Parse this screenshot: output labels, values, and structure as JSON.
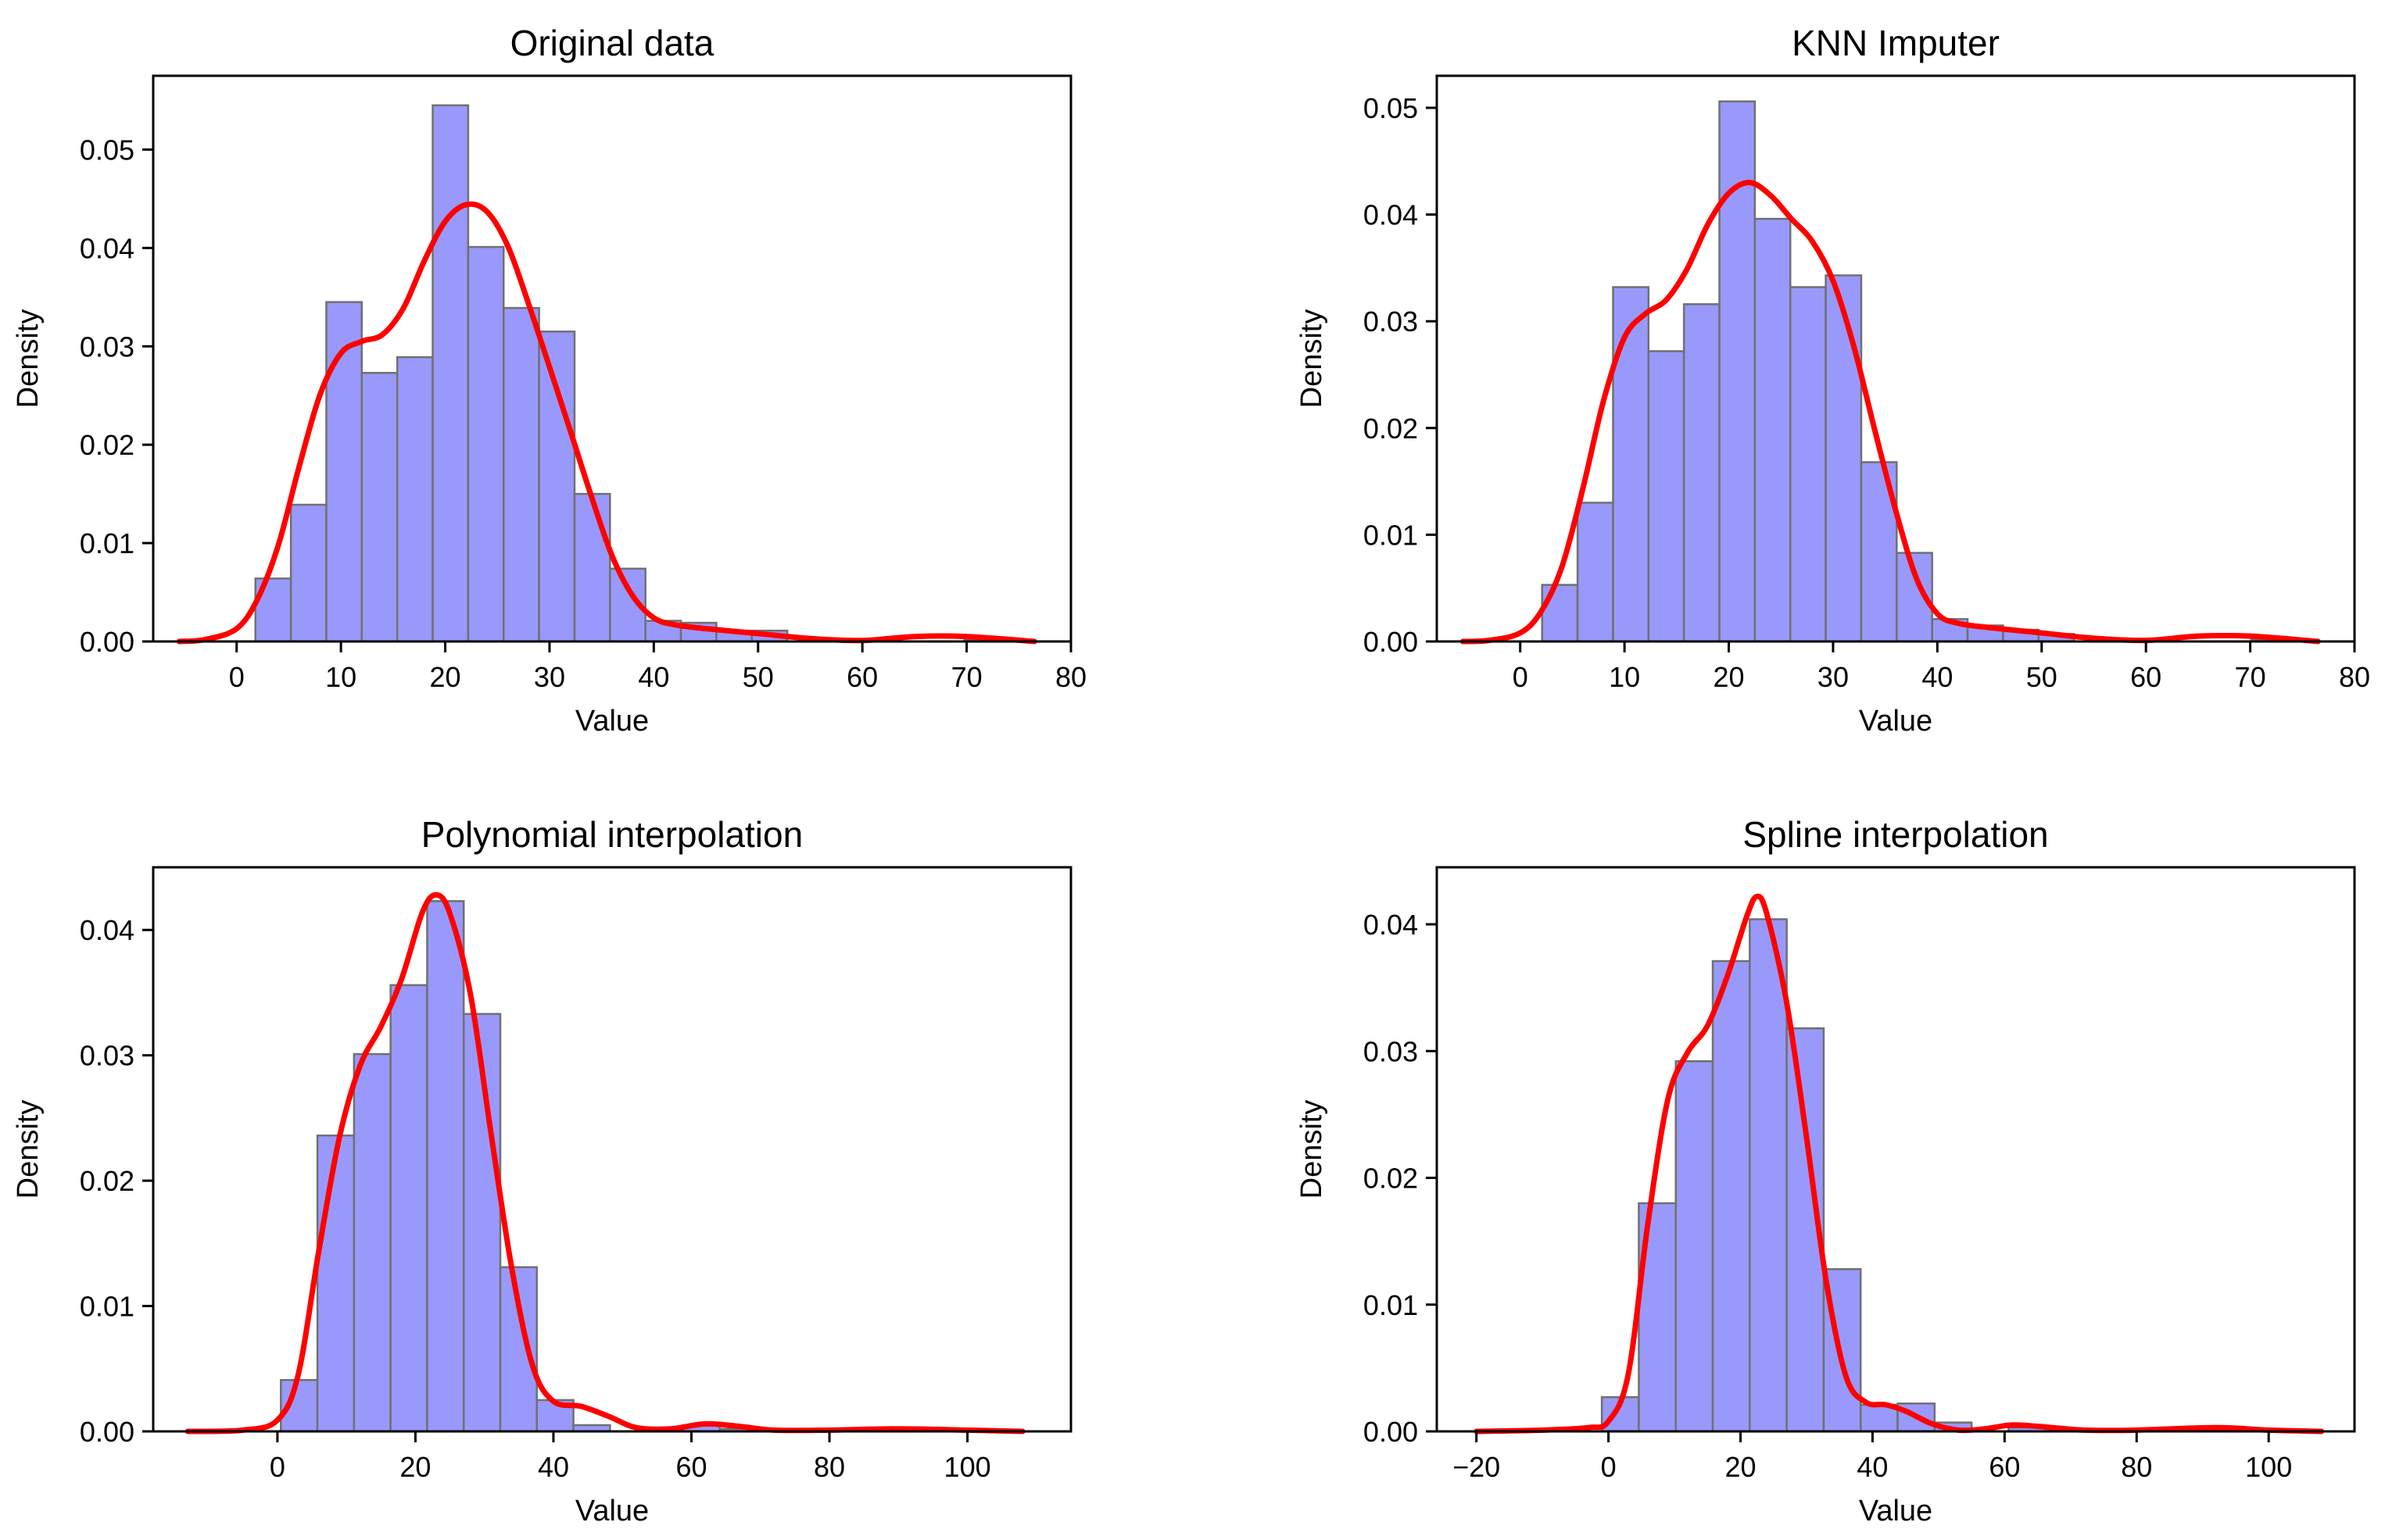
{
  "chart_data": [
    {
      "type": "bar",
      "title": "Original data",
      "xlabel": "Value",
      "ylabel": "Density",
      "xlim": [
        -8,
        80
      ],
      "ylim": [
        0,
        0.0575
      ],
      "xticks": [
        0,
        10,
        20,
        30,
        40,
        50,
        60,
        70,
        80
      ],
      "yticks": [
        0.0,
        0.01,
        0.02,
        0.03,
        0.04,
        0.05
      ],
      "ytick_labels": [
        "0.00",
        "0.01",
        "0.02",
        "0.03",
        "0.04",
        "0.05"
      ],
      "grid": false,
      "histogram": {
        "bin_start": 1.8,
        "bin_width": 3.4,
        "densities": [
          0.0064,
          0.0139,
          0.0345,
          0.0273,
          0.0289,
          0.0545,
          0.0401,
          0.0339,
          0.0315,
          0.015,
          0.0074,
          0.0021,
          0.0019,
          0.0011,
          0.0011,
          0.0,
          0.0,
          0.0,
          0.0,
          0.0,
          0.0002
        ]
      },
      "density_curve": {
        "x": [
          -5.5,
          -3,
          0,
          2,
          4,
          6,
          8,
          10,
          12,
          14,
          16,
          18,
          20,
          22,
          24,
          26,
          28,
          30,
          32,
          34,
          36,
          38,
          40,
          42,
          45,
          50,
          55,
          60,
          65,
          70,
          76.5
        ],
        "y": [
          0.0,
          0.0002,
          0.0013,
          0.0043,
          0.0098,
          0.0178,
          0.0251,
          0.0293,
          0.0305,
          0.0312,
          0.0339,
          0.0387,
          0.0427,
          0.0444,
          0.0437,
          0.0402,
          0.0343,
          0.0279,
          0.0214,
          0.0148,
          0.0087,
          0.0046,
          0.0024,
          0.0017,
          0.0013,
          0.0008,
          0.0003,
          0.0001,
          0.0005,
          0.0005,
          0.0
        ]
      }
    },
    {
      "type": "bar",
      "title": "KNN Imputer",
      "xlabel": "Value",
      "ylabel": "Density",
      "xlim": [
        -8,
        80
      ],
      "ylim": [
        0,
        0.053
      ],
      "xticks": [
        0,
        10,
        20,
        30,
        40,
        50,
        60,
        70,
        80
      ],
      "yticks": [
        0.0,
        0.01,
        0.02,
        0.03,
        0.04,
        0.05
      ],
      "ytick_labels": [
        "0.00",
        "0.01",
        "0.02",
        "0.03",
        "0.04",
        "0.05"
      ],
      "grid": false,
      "histogram": {
        "bin_start": 2.1,
        "bin_width": 3.4,
        "densities": [
          0.0053,
          0.013,
          0.0332,
          0.0272,
          0.0316,
          0.0506,
          0.0396,
          0.0332,
          0.0343,
          0.0168,
          0.0083,
          0.0021,
          0.0015,
          0.0011,
          0.0007,
          0.0,
          0.0,
          0.0,
          0.0,
          0.0,
          0.0002
        ]
      },
      "density_curve": {
        "x": [
          -5.5,
          -3,
          0,
          2,
          4,
          6,
          8,
          10,
          12,
          14,
          16,
          18,
          20,
          22,
          24,
          26,
          28,
          30,
          32,
          34,
          36,
          38,
          40,
          42,
          45,
          50,
          55,
          60,
          65,
          70,
          76.5
        ],
        "y": [
          0.0,
          0.0001,
          0.0008,
          0.0028,
          0.007,
          0.0143,
          0.0226,
          0.0285,
          0.0307,
          0.032,
          0.0349,
          0.0391,
          0.042,
          0.043,
          0.0418,
          0.0396,
          0.0375,
          0.0338,
          0.0276,
          0.0198,
          0.0123,
          0.0059,
          0.0026,
          0.0017,
          0.0013,
          0.0008,
          0.0003,
          0.0001,
          0.0005,
          0.0005,
          0.0
        ]
      }
    },
    {
      "type": "bar",
      "title": "Polynomial interpolation",
      "xlabel": "Value",
      "ylabel": "Density",
      "xlim": [
        -18,
        115
      ],
      "ylim": [
        0,
        0.045
      ],
      "xticks": [
        0,
        20,
        40,
        60,
        80,
        100
      ],
      "yticks": [
        0.0,
        0.01,
        0.02,
        0.03,
        0.04
      ],
      "ytick_labels": [
        "0.00",
        "0.01",
        "0.02",
        "0.03",
        "0.04"
      ],
      "grid": false,
      "histogram": {
        "bin_start": 0.5,
        "bin_width": 5.3,
        "densities": [
          0.0041,
          0.0236,
          0.0301,
          0.0356,
          0.0423,
          0.0333,
          0.0131,
          0.0025,
          0.0005,
          0.0,
          0.0,
          0.0005,
          0.0002,
          0.0,
          0.0,
          0.0,
          0.0001,
          0.0,
          0.0001,
          0.0001
        ]
      },
      "density_curve": {
        "x": [
          -13,
          -5,
          0,
          3,
          6,
          9,
          12,
          15,
          18,
          21,
          23,
          25,
          28,
          31,
          34,
          37,
          40,
          44,
          48,
          52,
          57,
          62,
          67,
          72,
          80,
          90,
          100,
          108
        ],
        "y": [
          0.0,
          0.0001,
          0.0009,
          0.0045,
          0.0144,
          0.0235,
          0.0292,
          0.0323,
          0.0361,
          0.0414,
          0.0428,
          0.0413,
          0.0348,
          0.0236,
          0.0129,
          0.0052,
          0.0024,
          0.002,
          0.0012,
          0.0003,
          0.0002,
          0.0006,
          0.0004,
          0.0001,
          0.0001,
          0.0002,
          0.0001,
          0.0
        ]
      }
    },
    {
      "type": "bar",
      "title": "Spline interpolation",
      "xlabel": "Value",
      "ylabel": "Density",
      "xlim": [
        -26,
        113
      ],
      "ylim": [
        0,
        0.0445
      ],
      "xticks": [
        -20,
        0,
        20,
        40,
        60,
        80,
        100
      ],
      "yticks": [
        0.0,
        0.01,
        0.02,
        0.03,
        0.04
      ],
      "ytick_labels": [
        "0.00",
        "0.01",
        "0.02",
        "0.03",
        "0.04"
      ],
      "grid": false,
      "histogram": {
        "bin_start": -1.0,
        "bin_width": 5.6,
        "densities": [
          0.0027,
          0.018,
          0.0292,
          0.0371,
          0.0404,
          0.0318,
          0.0128,
          0.0021,
          0.0022,
          0.0007,
          0.0,
          0.0003,
          0.0002,
          0.0,
          0.0,
          0.0,
          0.0001,
          0.0,
          0.0001,
          0.0
        ]
      },
      "density_curve": {
        "x": [
          -20,
          -10,
          -3,
          0,
          3,
          6,
          9,
          12,
          15,
          18,
          21,
          22.5,
          24,
          27,
          30,
          33,
          36,
          39,
          42,
          45,
          49,
          53,
          57,
          61,
          65,
          72,
          80,
          92,
          100,
          108
        ],
        "y": [
          0.0,
          0.0001,
          0.0003,
          0.0008,
          0.0045,
          0.0165,
          0.0262,
          0.0299,
          0.032,
          0.0359,
          0.0407,
          0.0422,
          0.0408,
          0.0338,
          0.0232,
          0.0118,
          0.0043,
          0.0023,
          0.0021,
          0.0016,
          0.0006,
          0.0001,
          0.0002,
          0.0005,
          0.0004,
          0.0001,
          0.0001,
          0.0003,
          0.0001,
          0.0
        ]
      }
    }
  ],
  "colors": {
    "histogram_fill": "#9999fb",
    "histogram_edge": "#707070",
    "density_line": "#ff0000",
    "axes": "#000000"
  }
}
